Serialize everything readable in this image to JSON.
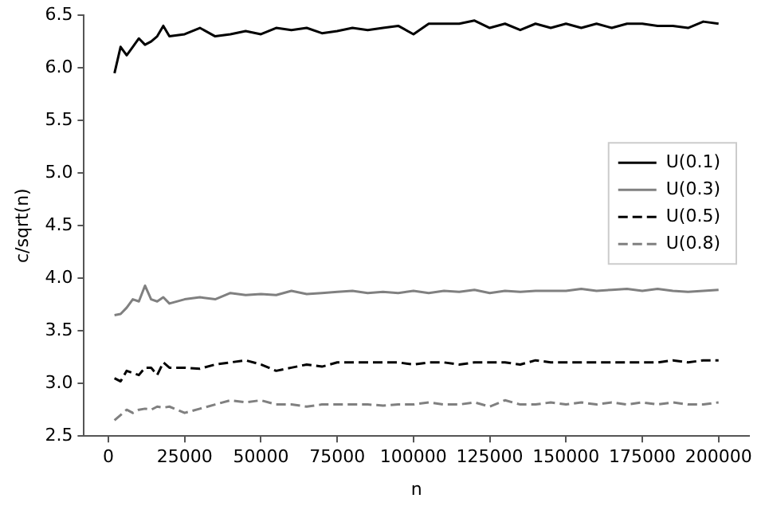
{
  "chart_data": {
    "type": "line",
    "xlabel": "n",
    "ylabel": "c/sqrt(n)",
    "x": [
      2000,
      4000,
      6000,
      8000,
      10000,
      12000,
      14000,
      16000,
      18000,
      20000,
      25000,
      30000,
      35000,
      40000,
      45000,
      50000,
      55000,
      60000,
      65000,
      70000,
      75000,
      80000,
      85000,
      90000,
      95000,
      100000,
      105000,
      110000,
      115000,
      120000,
      125000,
      130000,
      135000,
      140000,
      145000,
      150000,
      155000,
      160000,
      165000,
      170000,
      175000,
      180000,
      185000,
      190000,
      195000,
      200000
    ],
    "xlim": [
      -8000,
      210000
    ],
    "xticks": [
      0,
      25000,
      50000,
      75000,
      100000,
      125000,
      150000,
      175000,
      200000
    ],
    "ylim": [
      2.5,
      6.5
    ],
    "yticks": [
      {
        "value": 2.5,
        "label": "2.5"
      },
      {
        "value": 3.0,
        "label": "3.0"
      },
      {
        "value": 3.5,
        "label": "3.5"
      },
      {
        "value": 4.0,
        "label": "4.0"
      },
      {
        "value": 4.5,
        "label": "4.5"
      },
      {
        "value": 5.0,
        "label": "5.0"
      },
      {
        "value": 5.5,
        "label": "5.5"
      },
      {
        "value": 6.0,
        "label": "6.0"
      },
      {
        "value": 6.5,
        "label": "6.5"
      }
    ],
    "legend": "right",
    "grid": false,
    "marker": "none",
    "series": [
      {
        "name": "U(0.1)",
        "color": "#000000",
        "line_style": "solid",
        "values": [
          5.95,
          6.2,
          6.12,
          6.2,
          6.28,
          6.22,
          6.25,
          6.3,
          6.4,
          6.3,
          6.32,
          6.38,
          6.3,
          6.32,
          6.35,
          6.32,
          6.38,
          6.36,
          6.38,
          6.33,
          6.35,
          6.38,
          6.36,
          6.38,
          6.4,
          6.32,
          6.42,
          6.42,
          6.42,
          6.45,
          6.38,
          6.42,
          6.36,
          6.42,
          6.38,
          6.42,
          6.38,
          6.42,
          6.38,
          6.42,
          6.42,
          6.4,
          6.4,
          6.38,
          6.44,
          6.42
        ]
      },
      {
        "name": "U(0.3)",
        "color": "#808080",
        "line_style": "solid",
        "values": [
          3.65,
          3.66,
          3.72,
          3.8,
          3.78,
          3.93,
          3.8,
          3.78,
          3.82,
          3.76,
          3.8,
          3.82,
          3.8,
          3.86,
          3.84,
          3.85,
          3.84,
          3.88,
          3.85,
          3.86,
          3.87,
          3.88,
          3.86,
          3.87,
          3.86,
          3.88,
          3.86,
          3.88,
          3.87,
          3.89,
          3.86,
          3.88,
          3.87,
          3.88,
          3.88,
          3.88,
          3.9,
          3.88,
          3.89,
          3.9,
          3.88,
          3.9,
          3.88,
          3.87,
          3.88,
          3.89
        ]
      },
      {
        "name": "U(0.5)",
        "color": "#000000",
        "line_style": "dashed",
        "values": [
          3.05,
          3.02,
          3.12,
          3.1,
          3.08,
          3.15,
          3.15,
          3.08,
          3.2,
          3.15,
          3.15,
          3.14,
          3.18,
          3.2,
          3.22,
          3.18,
          3.12,
          3.15,
          3.18,
          3.16,
          3.2,
          3.2,
          3.2,
          3.2,
          3.2,
          3.18,
          3.2,
          3.2,
          3.18,
          3.2,
          3.2,
          3.2,
          3.18,
          3.22,
          3.2,
          3.2,
          3.2,
          3.2,
          3.2,
          3.2,
          3.2,
          3.2,
          3.22,
          3.2,
          3.22,
          3.22
        ]
      },
      {
        "name": "U(0.8)",
        "color": "#808080",
        "line_style": "dashed",
        "values": [
          2.65,
          2.7,
          2.75,
          2.72,
          2.75,
          2.76,
          2.75,
          2.78,
          2.77,
          2.78,
          2.72,
          2.76,
          2.8,
          2.84,
          2.82,
          2.84,
          2.8,
          2.8,
          2.78,
          2.8,
          2.8,
          2.8,
          2.8,
          2.79,
          2.8,
          2.8,
          2.82,
          2.8,
          2.8,
          2.82,
          2.78,
          2.84,
          2.8,
          2.8,
          2.82,
          2.8,
          2.82,
          2.8,
          2.82,
          2.8,
          2.82,
          2.8,
          2.82,
          2.8,
          2.8,
          2.82
        ]
      }
    ]
  }
}
